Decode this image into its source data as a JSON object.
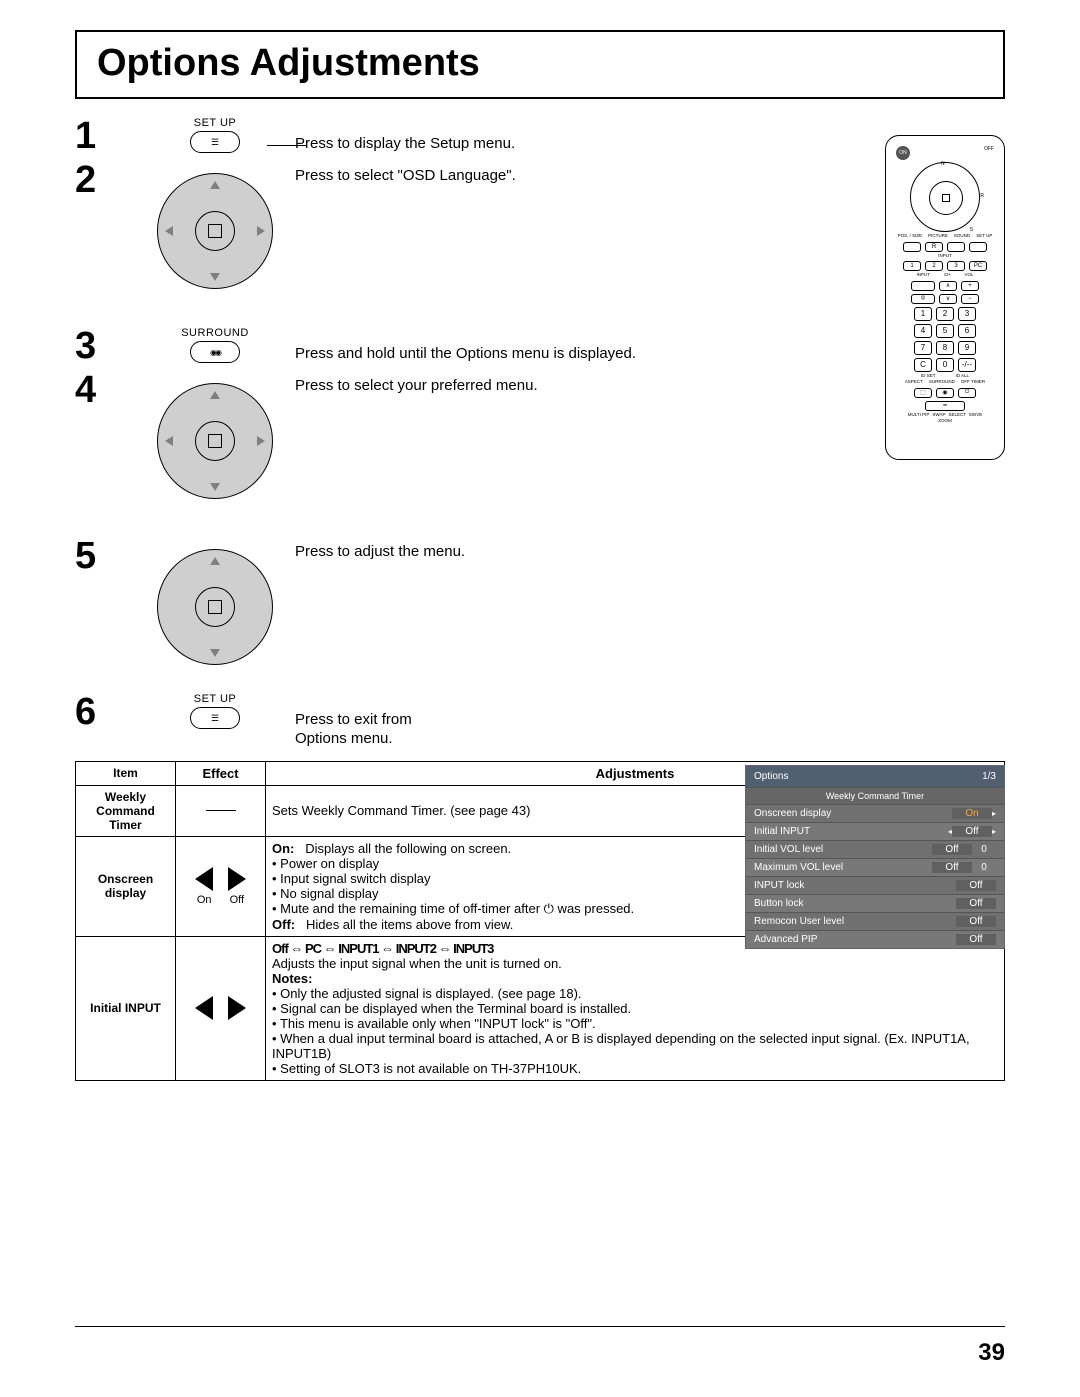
{
  "title": "Options Adjustments",
  "page_number": "39",
  "steps": [
    {
      "n": "1",
      "label": "SET UP",
      "text": "Press to display the Setup menu."
    },
    {
      "n": "2",
      "label": "",
      "text": "Press to select \"OSD Language\"."
    },
    {
      "n": "3",
      "label": "SURROUND",
      "text": "Press and hold until the Options menu is displayed."
    },
    {
      "n": "4",
      "label": "",
      "text": "Press to select your preferred menu."
    },
    {
      "n": "5",
      "label": "",
      "text": "Press to adjust the menu."
    },
    {
      "n": "6",
      "label": "SET UP",
      "text": "Press to exit from\nOptions menu."
    }
  ],
  "remote": {
    "on": "ON",
    "off": "OFF",
    "n": "N",
    "r": "R",
    "s": "S",
    "labels": [
      "POS. / SIZE",
      "PICTURE",
      "SOUND",
      "SET UP"
    ],
    "inputs": [
      "1",
      "2",
      "3",
      "PC"
    ],
    "udlabels": [
      "INPUT",
      "CH",
      "VOL"
    ],
    "numpad": [
      [
        "1",
        "2",
        "3"
      ],
      [
        "4",
        "5",
        "6"
      ],
      [
        "7",
        "8",
        "9"
      ],
      [
        "C",
        "0",
        "-/--"
      ]
    ],
    "bottom": [
      "ASPECT",
      "SURROUND",
      "OFF TIMER"
    ],
    "br": [
      "MULTI PIP",
      "SWAP",
      "SELECT",
      "MOVE"
    ],
    "idset": "ID SET",
    "idall": "ID ALL",
    "zoom": "ZOOM"
  },
  "osd": {
    "title": "Options",
    "page": "1/3",
    "cmd": "Weekly Command Timer",
    "rows": [
      {
        "name": "Onscreen display",
        "val": "On",
        "orange": true,
        "arrow": "r"
      },
      {
        "name": "Initial INPUT",
        "val": "Off",
        "arrow": "lr"
      },
      {
        "name": "Initial VOL level",
        "val": "Off",
        "num": "0"
      },
      {
        "name": "Maximum VOL level",
        "val": "Off",
        "num": "0"
      },
      {
        "name": "INPUT lock",
        "val": "Off"
      },
      {
        "name": "Button lock",
        "val": "Off"
      },
      {
        "name": "Remocon User level",
        "val": "Off"
      },
      {
        "name": "Advanced PIP",
        "val": "Off"
      }
    ]
  },
  "table": {
    "headers": [
      "Item",
      "Effect",
      "Adjustments"
    ],
    "rows": [
      {
        "item": "Weekly\nCommand\nTimer",
        "effect": "line",
        "adj": "Sets Weekly Command Timer. (see page 43)"
      },
      {
        "item": "Onscreen\ndisplay",
        "effect": "onoff",
        "on_label": "On",
        "off_label": "Off",
        "adj_lead_on": "On:",
        "adj_on_text": "Displays all the following on screen.",
        "bullets": [
          "Power on display",
          "Input signal switch display",
          "No signal display",
          "Mute and the remaining time of off-timer after ⏻ was pressed."
        ],
        "adj_lead_off": "Off:",
        "adj_off_text": "Hides all the items above from view."
      },
      {
        "item": "Initial INPUT",
        "effect": "arrows",
        "chain": "Off ⇔ PC ⇔ INPUT1 ⇔ INPUT2 ⇔ INPUT3",
        "line2": "Adjusts the input signal when the unit is turned on.",
        "notes_label": "Notes:",
        "notes": [
          "Only the adjusted signal is displayed. (see page 18).",
          "Signal can be displayed when the Terminal board is installed.",
          "This menu is available only when \"INPUT lock\" is \"Off\".",
          "When a dual input terminal board is attached, A or B is displayed depending on the selected input signal. (Ex. INPUT1A, INPUT1B)",
          "Setting of SLOT3 is not available on TH-37PH10UK."
        ]
      }
    ]
  },
  "colors": {
    "osd_head_bg": "#506070",
    "osd_row_bg": "#707070",
    "osd_orange": "#f7a640",
    "dpad_fill": "#cfcfcf",
    "tri_gray": "#808080"
  }
}
